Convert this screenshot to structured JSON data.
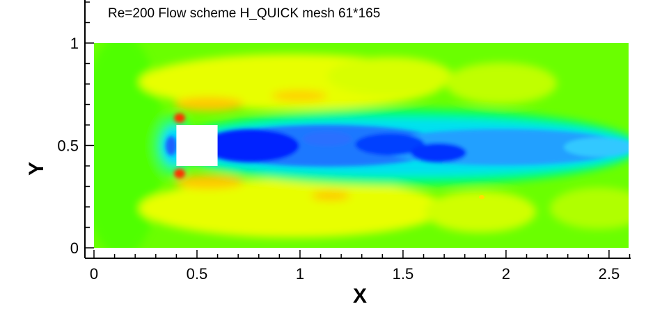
{
  "chart_data": {
    "type": "heatmap",
    "title": "Re=200 Flow scheme H_QUICK mesh 61*165",
    "xlabel": "X",
    "ylabel": "Y",
    "xlim": [
      0,
      2.6
    ],
    "ylim": [
      0,
      1
    ],
    "x_ticks": [
      {
        "value": 0,
        "label": "0"
      },
      {
        "value": 0.5,
        "label": "0.5"
      },
      {
        "value": 1,
        "label": "1"
      },
      {
        "value": 1.5,
        "label": "1.5"
      },
      {
        "value": 2,
        "label": "2"
      },
      {
        "value": 2.5,
        "label": "2.5"
      }
    ],
    "y_ticks": [
      {
        "value": 0,
        "label": "0"
      },
      {
        "value": 0.5,
        "label": "0.5"
      },
      {
        "value": 1,
        "label": "1"
      }
    ],
    "obstacle": {
      "x": [
        0.4,
        0.6
      ],
      "y": [
        0.4,
        0.6
      ],
      "color": "#ffffff"
    },
    "grid": false,
    "legend": "none",
    "colormap": [
      "#0000ff",
      "#0a50ff",
      "#1aa0ff",
      "#00e6e6",
      "#00ff80",
      "#40ff00",
      "#a0ff00",
      "#ffff00",
      "#ffc000",
      "#ff4000",
      "#ff0000"
    ]
  }
}
